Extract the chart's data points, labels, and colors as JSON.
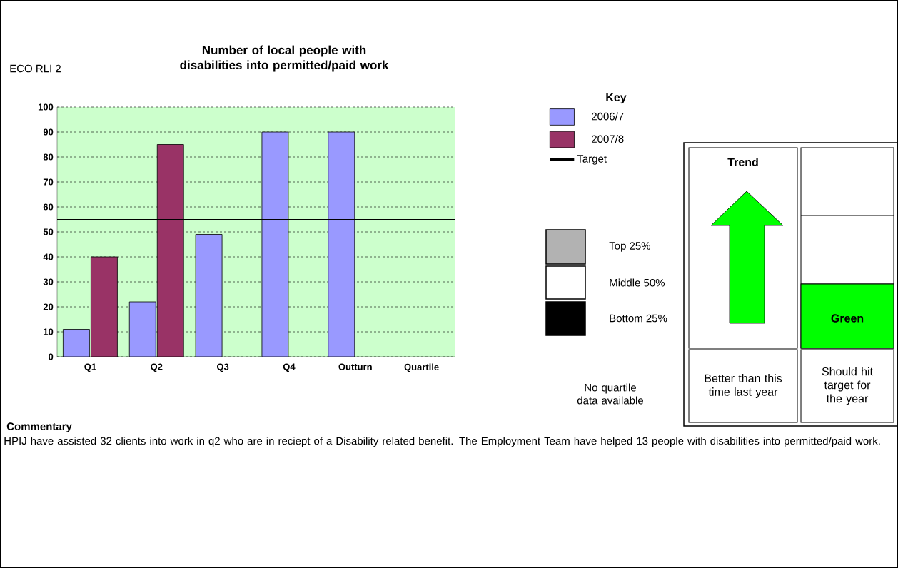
{
  "chart_data": [
    {
      "type": "bar",
      "title": "Number of local people with disabilities into permitted/paid work",
      "categories": [
        "Q1",
        "Q2",
        "Q3",
        "Q4",
        "Outturn",
        "Quartile"
      ],
      "series": [
        {
          "name": "2006/7",
          "color": "#9999ff",
          "values": [
            11,
            22,
            49,
            90,
            90,
            null
          ]
        },
        {
          "name": "2007/8",
          "color": "#993366",
          "values": [
            40,
            85,
            null,
            null,
            null,
            null
          ]
        }
      ],
      "ylim": [
        0,
        100
      ],
      "yticks": [
        0,
        10,
        20,
        30,
        40,
        50,
        60,
        70,
        80,
        90,
        100
      ],
      "grid": "y",
      "legend": "right",
      "legend_title": "Key",
      "ref_lines": [
        {
          "axis": "y",
          "value": 55,
          "label": "Target",
          "color": "#000000"
        }
      ],
      "annotations": [
        "ECO RLI 2",
        "Commentary",
        "HPIJ have assisted 32 clients into work in q2 who are in reciept of a Disability related benefit. The Employment Team have helped 13 people with disabilities into permitted/paid work."
      ]
    },
    {
      "type": "other",
      "annotations": [
        "Top 25%",
        "Middle 50%",
        "Bottom 25%",
        "No quartile data available",
        "Trend",
        "Green",
        "Better than this time last year",
        "Should hit target for the year"
      ]
    }
  ]
}
